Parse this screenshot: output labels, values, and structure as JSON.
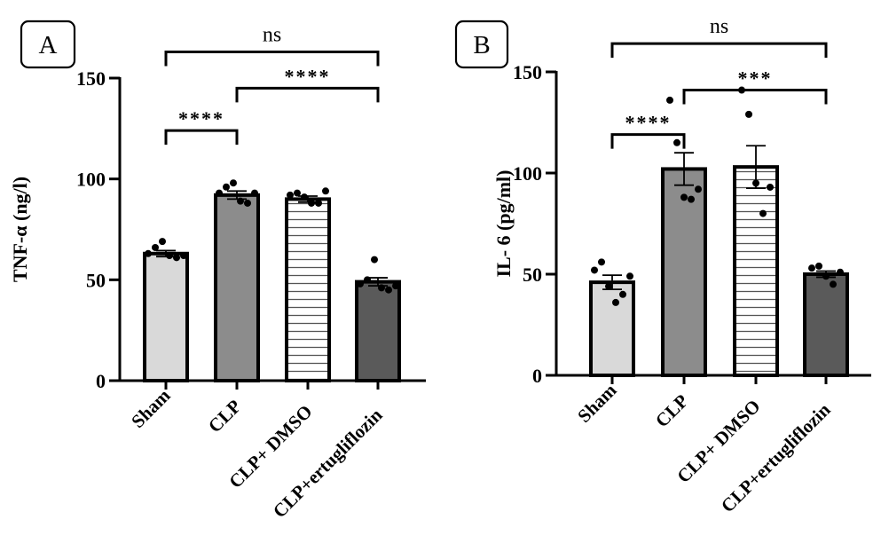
{
  "chart_data": [
    {
      "type": "bar",
      "panel_label": "A",
      "ylabel": "TNF-α (ng/l)",
      "ylim": [
        0,
        150
      ],
      "yticks": [
        0,
        50,
        100,
        150
      ],
      "categories": [
        "Sham",
        "CLP",
        "CLP+ DMSO",
        "CLP+ertugliflozin"
      ],
      "fills": [
        "#d9d9d9",
        "#8c8c8c",
        "hatch",
        "#5a5a5a"
      ],
      "values": [
        63,
        92,
        90,
        49
      ],
      "errors": [
        1.5,
        2.0,
        1.5,
        2.0
      ],
      "points": [
        [
          63,
          66,
          69,
          62,
          61,
          62
        ],
        [
          93,
          96,
          98,
          89,
          88,
          93
        ],
        [
          92,
          93,
          91,
          88,
          88,
          94
        ],
        [
          48,
          50,
          60,
          46,
          45,
          47
        ]
      ],
      "comparisons": [
        {
          "from": 0,
          "to": 3,
          "label": "ns",
          "y": 163
        },
        {
          "from": 1,
          "to": 3,
          "label": "****",
          "y": 145
        },
        {
          "from": 0,
          "to": 1,
          "label": "****",
          "y": 124
        }
      ]
    },
    {
      "type": "bar",
      "panel_label": "B",
      "ylabel": "IL- 6 (pg/ml)",
      "ylim": [
        0,
        150
      ],
      "yticks": [
        0,
        50,
        100,
        150
      ],
      "categories": [
        "Sham",
        "CLP",
        "CLP+ DMSO",
        "CLP+ertugliflozin"
      ],
      "fills": [
        "#d9d9d9",
        "#8c8c8c",
        "hatch",
        "#5a5a5a"
      ],
      "values": [
        46,
        102,
        103,
        50
      ],
      "errors": [
        3.5,
        8.0,
        10.5,
        1.5
      ],
      "points": [
        [
          52,
          56,
          44,
          36,
          40,
          49
        ],
        [
          136,
          115,
          88,
          87,
          92
        ],
        [
          141,
          129,
          95,
          80,
          93
        ],
        [
          53,
          54,
          49,
          45,
          51
        ]
      ],
      "comparisons": [
        {
          "from": 0,
          "to": 3,
          "label": "ns",
          "y": 164
        },
        {
          "from": 1,
          "to": 3,
          "label": "***",
          "y": 141
        },
        {
          "from": 0,
          "to": 1,
          "label": "****",
          "y": 119
        }
      ]
    }
  ]
}
